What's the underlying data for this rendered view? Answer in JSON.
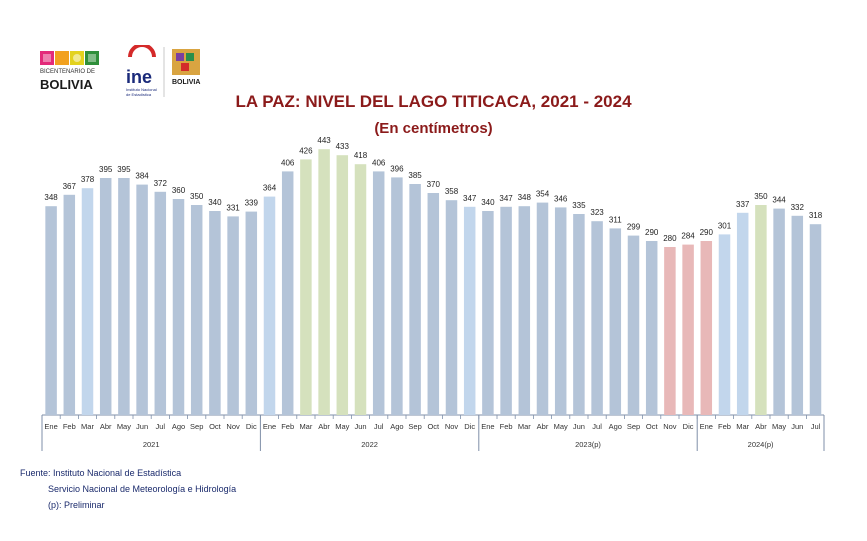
{
  "logos": {
    "bicentenario_line1": "BICENTENARIO DE",
    "bicentenario_line2": "BOLIVIA",
    "ine_name": "ine",
    "ine_sub1": "Instituto Nacional",
    "ine_sub2": "de Estadística",
    "gov_name": "BOLIVIA"
  },
  "footer": {
    "source_line1": "Fuente: Instituto Nacional de Estadística",
    "source_line2": "Servicio Nacional de Meteorología e  Hidrología",
    "source_line3": "(p): Preliminar"
  },
  "colors": {
    "title": "#8b1a1a",
    "default_bar": "#b4c4d8",
    "light_blue": "#c2d6ec",
    "green": "#d5e1bd",
    "pink": "#e8b8b8",
    "axis": "#7f8fa8"
  },
  "chart_data": {
    "type": "bar",
    "title": "LA PAZ: NIVEL DEL LAGO TITICACA, 2021 - 2024",
    "subtitle": "(En centímetros)",
    "ylim": [
      0,
      460
    ],
    "grid": false,
    "groups": [
      {
        "label": "2021",
        "months": [
          "Ene",
          "Feb",
          "Mar",
          "Abr",
          "May",
          "Jun",
          "Jul",
          "Ago",
          "Sep",
          "Oct",
          "Nov",
          "Dic"
        ],
        "values": [
          348,
          367,
          378,
          395,
          395,
          384,
          372,
          360,
          350,
          340,
          331,
          339
        ],
        "colors": [
          "default_bar",
          "default_bar",
          "light_blue",
          "default_bar",
          "default_bar",
          "default_bar",
          "default_bar",
          "default_bar",
          "default_bar",
          "default_bar",
          "default_bar",
          "default_bar"
        ]
      },
      {
        "label": "2022",
        "months": [
          "Ene",
          "Feb",
          "Mar",
          "Abr",
          "May",
          "Jun",
          "Jul",
          "Ago",
          "Sep",
          "Oct",
          "Nov",
          "Dic"
        ],
        "values": [
          364,
          406,
          426,
          443,
          433,
          418,
          406,
          396,
          385,
          370,
          358,
          347
        ],
        "colors": [
          "light_blue",
          "default_bar",
          "green",
          "green",
          "green",
          "green",
          "default_bar",
          "default_bar",
          "default_bar",
          "default_bar",
          "default_bar",
          "light_blue"
        ]
      },
      {
        "label": "2023(p)",
        "months": [
          "Ene",
          "Feb",
          "Mar",
          "Abr",
          "May",
          "Jun",
          "Jul",
          "Ago",
          "Sep",
          "Oct",
          "Nov",
          "Dic"
        ],
        "values": [
          340,
          347,
          348,
          354,
          346,
          335,
          323,
          311,
          299,
          290,
          280,
          284
        ],
        "colors": [
          "default_bar",
          "default_bar",
          "default_bar",
          "default_bar",
          "default_bar",
          "default_bar",
          "default_bar",
          "default_bar",
          "default_bar",
          "default_bar",
          "pink",
          "pink"
        ]
      },
      {
        "label": "2024(p)",
        "months": [
          "Ene",
          "Feb",
          "Mar",
          "Abr",
          "May",
          "Jun",
          "Jul"
        ],
        "values": [
          290,
          301,
          337,
          350,
          344,
          332,
          318
        ],
        "colors": [
          "pink",
          "light_blue",
          "light_blue",
          "green",
          "default_bar",
          "default_bar",
          "default_bar"
        ]
      }
    ]
  }
}
